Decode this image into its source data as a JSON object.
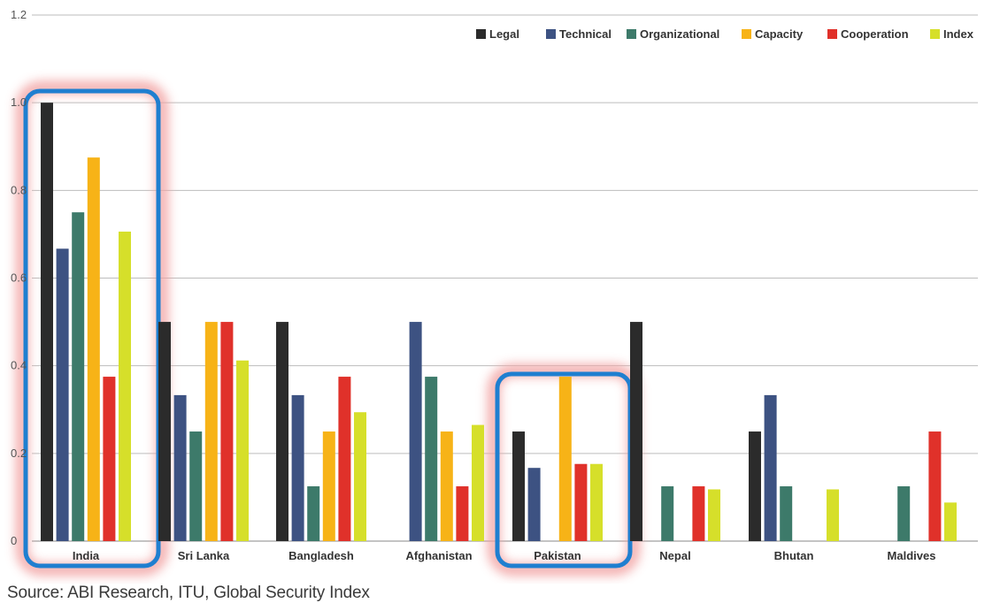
{
  "source": "Source: ABI Research, ITU, Global Security Index",
  "chart_data": {
    "type": "bar",
    "categories": [
      "India",
      "Sri Lanka",
      "Bangladesh",
      "Afghanistan",
      "Pakistan",
      "Nepal",
      "Bhutan",
      "Maldives"
    ],
    "series": [
      {
        "name": "Legal",
        "color": "#2b2b2b",
        "values": [
          1.0,
          0.5,
          0.5,
          0,
          0.25,
          0.5,
          0.25,
          0
        ]
      },
      {
        "name": "Technical",
        "color": "#3d5282",
        "values": [
          0.667,
          0.333,
          0.333,
          0.5,
          0.167,
          0,
          0.333,
          0
        ]
      },
      {
        "name": "Organizational",
        "color": "#3d7a6a",
        "values": [
          0.75,
          0.25,
          0.125,
          0.375,
          0,
          0.125,
          0.125,
          0.125
        ]
      },
      {
        "name": "Capacity",
        "color": "#f7b317",
        "values": [
          0.875,
          0.5,
          0.25,
          0.25,
          0.375,
          0,
          0,
          0
        ]
      },
      {
        "name": "Cooperation",
        "color": "#e0312a",
        "values": [
          0.375,
          0.5,
          0.375,
          0.125,
          0.176,
          0.125,
          0,
          0.25
        ]
      },
      {
        "name": "Index",
        "color": "#d6df2a",
        "values": [
          0.706,
          0.412,
          0.294,
          0.265,
          0.176,
          0.118,
          0.118,
          0.088
        ]
      }
    ],
    "yticks": [
      "0",
      "0.2",
      "0.4",
      "0.6",
      "0.8",
      "1.0",
      "1.2"
    ],
    "ylim": [
      0,
      1.2
    ],
    "grid": true,
    "legend_position": "top-right",
    "highlighted": [
      "India",
      "Pakistan"
    ]
  }
}
